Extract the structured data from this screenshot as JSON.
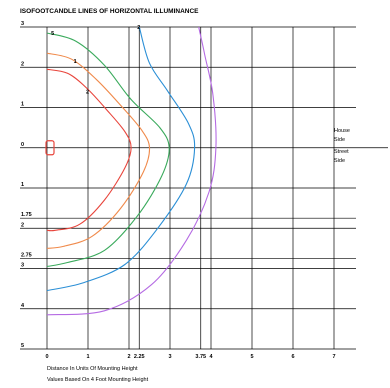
{
  "chart_data": {
    "type": "line",
    "title": "ISOFOOTCANDLE LINES OF HORIZONTAL ILLUMINANCE",
    "xlabel": "Distance In Units Of Mounting Height",
    "note": "Values Based On 4 Foot Mounting Height",
    "x_ticks": [
      {
        "value": 0,
        "label": "0"
      },
      {
        "value": 1,
        "label": "1"
      },
      {
        "value": 2,
        "label": "2"
      },
      {
        "value": 2.25,
        "label": "2.25"
      },
      {
        "value": 3,
        "label": "3"
      },
      {
        "value": 3.75,
        "label": "3.75"
      },
      {
        "value": 4,
        "label": "4"
      },
      {
        "value": 5,
        "label": "5"
      },
      {
        "value": 6,
        "label": "6"
      },
      {
        "value": 7,
        "label": "7"
      }
    ],
    "y_ticks": [
      {
        "value": 3,
        "label": "3"
      },
      {
        "value": 2,
        "label": "2"
      },
      {
        "value": 1,
        "label": "1"
      },
      {
        "value": 0,
        "label": "0"
      },
      {
        "value": -1,
        "label": "1"
      },
      {
        "value": -1.75,
        "label": "1.75"
      },
      {
        "value": -2,
        "label": "2"
      },
      {
        "value": -2.75,
        "label": "2.75"
      },
      {
        "value": -3,
        "label": "3"
      },
      {
        "value": -4,
        "label": "4"
      },
      {
        "value": -5,
        "label": "5"
      }
    ],
    "xlim": [
      0,
      7
    ],
    "ylim": [
      -5,
      3
    ],
    "grid": true,
    "side_labels": {
      "house": [
        "House",
        "Side"
      ],
      "street": [
        "Street",
        "Side"
      ]
    },
    "series": [
      {
        "label": "1",
        "color": "#e8453c",
        "points": [
          [
            0,
            1.95
          ],
          [
            0.5,
            1.85
          ],
          [
            0.95,
            1.5
          ],
          [
            1.45,
            0.95
          ],
          [
            1.9,
            0.4
          ],
          [
            2.05,
            0
          ],
          [
            1.9,
            -0.5
          ],
          [
            1.4,
            -1.3
          ],
          [
            0.8,
            -1.9
          ],
          [
            0.2,
            -2.05
          ],
          [
            0,
            -2.05
          ]
        ]
      },
      {
        "label": "",
        "color": "#f08a4b",
        "points": [
          [
            0,
            2.35
          ],
          [
            0.6,
            2.2
          ],
          [
            1.2,
            1.7
          ],
          [
            1.8,
            1.05
          ],
          [
            2.3,
            0.45
          ],
          [
            2.5,
            0
          ],
          [
            2.35,
            -0.6
          ],
          [
            1.8,
            -1.5
          ],
          [
            1.1,
            -2.2
          ],
          [
            0.4,
            -2.45
          ],
          [
            0,
            -2.5
          ]
        ]
      },
      {
        "label": "",
        "color": "#3aaa5c",
        "points": [
          [
            0,
            2.85
          ],
          [
            0.7,
            2.65
          ],
          [
            1.4,
            2.05
          ],
          [
            2.05,
            1.2
          ],
          [
            2.75,
            0.5
          ],
          [
            2.98,
            0
          ],
          [
            2.8,
            -0.7
          ],
          [
            2.2,
            -1.7
          ],
          [
            1.4,
            -2.55
          ],
          [
            0.5,
            -2.85
          ],
          [
            0,
            -2.95
          ]
        ]
      },
      {
        "label": "",
        "color": "#2b8fd6",
        "points": [
          [
            2.25,
            3
          ],
          [
            2.5,
            2.1
          ],
          [
            2.95,
            1.4
          ],
          [
            3.45,
            0.6
          ],
          [
            3.6,
            0
          ],
          [
            3.4,
            -0.9
          ],
          [
            2.7,
            -2
          ],
          [
            1.9,
            -2.9
          ],
          [
            0.9,
            -3.35
          ],
          [
            0,
            -3.55
          ]
        ]
      },
      {
        "label": "",
        "color": "#b56be3",
        "points": [
          [
            3.7,
            3
          ],
          [
            3.85,
            2.3
          ],
          [
            4.05,
            1.3
          ],
          [
            4.12,
            0
          ],
          [
            3.95,
            -1.1
          ],
          [
            3.4,
            -2.3
          ],
          [
            2.55,
            -3.4
          ],
          [
            1.4,
            -4.05
          ],
          [
            0,
            -4.15
          ]
        ]
      }
    ],
    "inline_labels": [
      {
        "text": "5",
        "x": 0.1,
        "y": 2.8
      },
      {
        "text": "2",
        "x": 2.2,
        "y": 2.95
      },
      {
        "text": "1",
        "x": 0.65,
        "y": 2.1
      },
      {
        "text": "2",
        "x": 0.95,
        "y": 1.35
      }
    ]
  }
}
